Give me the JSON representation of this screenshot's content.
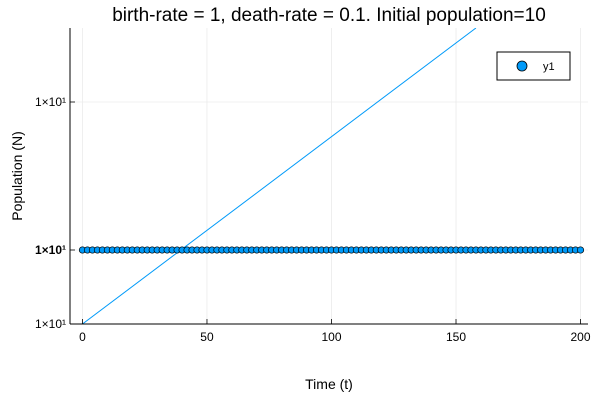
{
  "chart_data": {
    "type": "scatter",
    "title": "birth-rate = 1, death-rate = 0.1. Initial population=10",
    "xlabel": "Time (t)",
    "ylabel": "Population (N)",
    "xlim": [
      -5,
      203
    ],
    "xticks": [
      {
        "value": 0,
        "label": "0"
      },
      {
        "value": 50,
        "label": "50"
      },
      {
        "value": 100,
        "label": "100"
      },
      {
        "value": 150,
        "label": "150"
      },
      {
        "value": 200,
        "label": "200"
      }
    ],
    "yticks": [
      {
        "label": "1×10¹",
        "level": 0.0,
        "bold": false
      },
      {
        "label": "1×10¹",
        "level": 0.25,
        "bold": true
      },
      {
        "label": "1×10¹",
        "level": 0.75,
        "bold": false
      }
    ],
    "grid": true,
    "legend_position": "top-right",
    "series": [
      {
        "name": "y1",
        "kind": "scatter",
        "color": "#009AF9",
        "x_start": 0,
        "x_end": 200,
        "x_step": 2,
        "level": 0.25
      },
      {
        "kind": "line",
        "color": "#009AF9",
        "x": [
          0,
          158
        ],
        "level": [
          0.0,
          1.0
        ]
      }
    ]
  }
}
